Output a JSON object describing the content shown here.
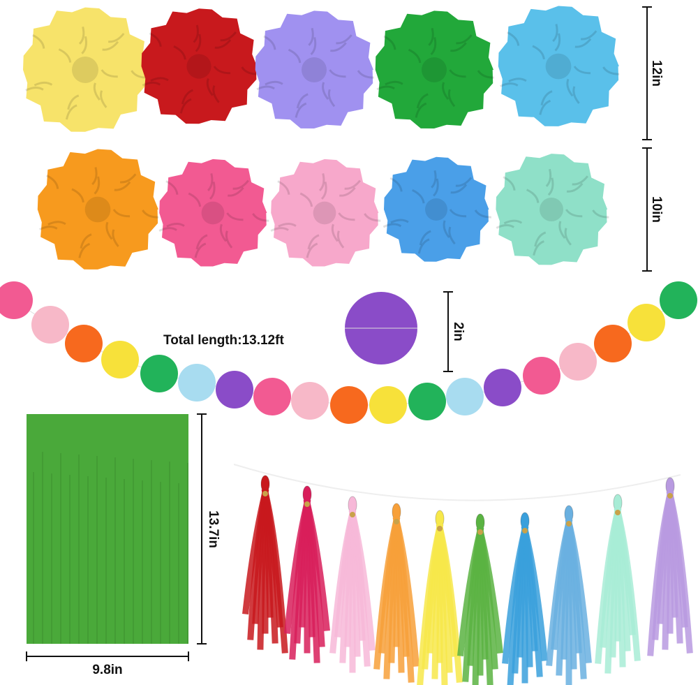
{
  "labels": {
    "pompom_large": "12in",
    "pompom_small": "10in",
    "garland_length": "Total length:13.12ft",
    "circle_diameter": "2in",
    "curtain_height": "13.7in",
    "curtain_width": "9.8in"
  }
}
